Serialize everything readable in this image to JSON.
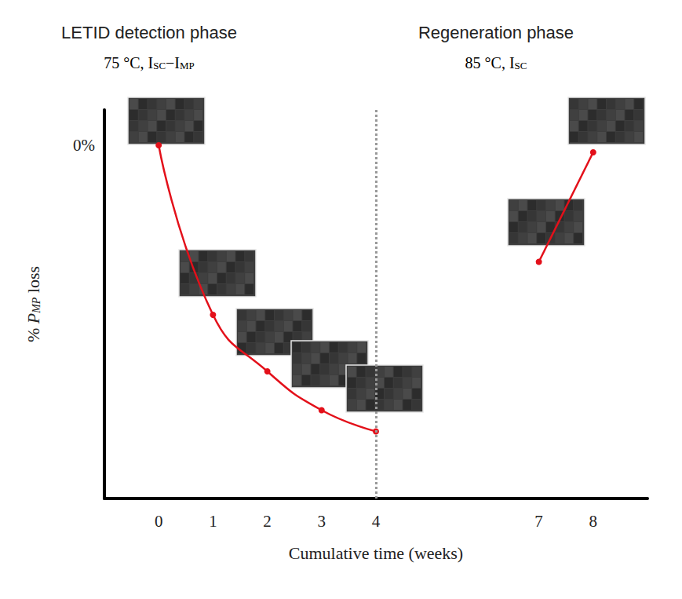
{
  "chart_data": {
    "type": "line",
    "annotations": [
      {
        "title": "LETID detection phase",
        "condition": [
          {
            "text": "75 °C, I"
          },
          {
            "text": "SC",
            "sub": true
          },
          {
            "text": "−I"
          },
          {
            "text": "MP",
            "sub": true
          }
        ]
      },
      {
        "title": "Regeneration phase",
        "condition": [
          {
            "text": "85 °C, I"
          },
          {
            "text": "SC",
            "sub": true
          }
        ]
      }
    ],
    "x_label": "Cumulative time (weeks)",
    "y_label": [
      {
        "text": "% "
      },
      {
        "text": "P",
        "italic": true
      },
      {
        "text": "MP",
        "sub": true,
        "italic": true
      },
      {
        "text": " loss"
      }
    ],
    "series": [
      {
        "color": "#e3101a",
        "marker": "circle",
        "line_style": "solid",
        "x": [
          0,
          1,
          2,
          3,
          4
        ],
        "values": [
          0,
          -4.8,
          -6.4,
          -7.5,
          -8.1
        ]
      },
      {
        "color": "#e3101a",
        "marker": "circle",
        "line_style": "solid",
        "x": [
          7,
          8
        ],
        "values": [
          -3.3,
          -0.2
        ]
      }
    ],
    "phase_boundary": 4,
    "xlim": [
      -1,
      9
    ],
    "xticks": [
      0,
      1,
      2,
      3,
      4,
      7,
      8
    ],
    "ylim": [
      -10,
      1
    ],
    "yticks": [
      {
        "value": 0,
        "label": "0%"
      }
    ],
    "grid": false
  }
}
